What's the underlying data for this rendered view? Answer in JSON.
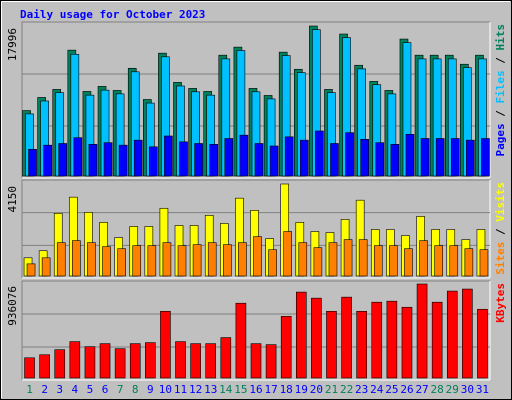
{
  "title": "Daily usage for October 2023",
  "legend_separator": " / ",
  "chart_data": [
    {
      "type": "bar",
      "ylim": [
        0,
        17996
      ],
      "yticks": [
        17996
      ],
      "series": [
        {
          "name": "Hits",
          "color": "#00805c",
          "values": [
            7852,
            9422,
            10389,
            15100,
            10147,
            10751,
            10268,
            12926,
            9181,
            14738,
            11234,
            10510,
            10147,
            14496,
            15462,
            10510,
            9664,
            14858,
            12805,
            17996,
            10389,
            17033,
            13288,
            11355,
            10268,
            16429,
            14496,
            14496,
            14496,
            13409,
            14496
          ]
        },
        {
          "name": "Files",
          "color": "#00c0ff",
          "values": [
            7450,
            9000,
            10000,
            14600,
            9700,
            10300,
            9850,
            12500,
            8750,
            14300,
            10800,
            10100,
            9700,
            14050,
            15050,
            10100,
            9250,
            14450,
            12400,
            17550,
            10000,
            16600,
            12850,
            10950,
            9850,
            16000,
            14050,
            14050,
            14050,
            13000,
            14050
          ]
        },
        {
          "name": "Pages",
          "color": "#0000ff",
          "values": [
            3200,
            3700,
            3900,
            4600,
            3800,
            4000,
            3700,
            4300,
            3500,
            4800,
            4100,
            3900,
            3800,
            4500,
            4900,
            3900,
            3600,
            4700,
            4300,
            5400,
            3900,
            5200,
            4400,
            4000,
            3800,
            5000,
            4500,
            4500,
            4500,
            4300,
            4500
          ]
        }
      ]
    },
    {
      "type": "bar",
      "ylim": [
        0,
        4150
      ],
      "yticks": [
        4150
      ],
      "series": [
        {
          "name": "Visits",
          "color": "#ffff00",
          "values": [
            821,
            1140,
            2827,
            3557,
            2873,
            2417,
            1733,
            2234,
            2234,
            3055,
            2280,
            2280,
            2736,
            2371,
            3511,
            2964,
            1687,
            4150,
            2417,
            2006,
            1961,
            2554,
            3420,
            2098,
            2098,
            1824,
            2690,
            2098,
            2098,
            1642,
            2098
          ]
        },
        {
          "name": "Sites",
          "color": "#ff8000",
          "values": [
            547,
            821,
            1505,
            1596,
            1505,
            1322,
            1231,
            1368,
            1368,
            1505,
            1368,
            1414,
            1505,
            1414,
            1505,
            1778,
            1186,
            2006,
            1505,
            1277,
            1505,
            1642,
            1642,
            1368,
            1368,
            1231,
            1596,
            1368,
            1368,
            1231,
            1186
          ]
        }
      ]
    },
    {
      "type": "bar",
      "ylim": [
        0,
        936076
      ],
      "yticks": [
        936076
      ],
      "categories": [
        "1",
        "2",
        "3",
        "4",
        "5",
        "6",
        "7",
        "8",
        "9",
        "10",
        "11",
        "12",
        "13",
        "14",
        "15",
        "16",
        "17",
        "18",
        "19",
        "20",
        "21",
        "22",
        "23",
        "24",
        "25",
        "26",
        "27",
        "28",
        "29",
        "30",
        "31"
      ],
      "category_colors": [
        "#00805c",
        "#0000ff",
        "#0000ff",
        "#0000ff",
        "#0000ff",
        "#0000ff",
        "#00805c",
        "#00805c",
        "#0000ff",
        "#0000ff",
        "#0000ff",
        "#0000ff",
        "#0000ff",
        "#00805c",
        "#00805c",
        "#0000ff",
        "#0000ff",
        "#0000ff",
        "#0000ff",
        "#0000ff",
        "#00805c",
        "#00805c",
        "#0000ff",
        "#0000ff",
        "#0000ff",
        "#0000ff",
        "#0000ff",
        "#00805c",
        "#00805c",
        "#0000ff",
        "#0000ff"
      ],
      "series": [
        {
          "name": "KBytes",
          "color": "#ff0000",
          "values": [
            201300,
            231495,
            281820,
            362340,
            312015,
            342210,
            291885,
            342210,
            352275,
            664290,
            362340,
            342210,
            342210,
            402600,
            744810,
            342210,
            332145,
            613965,
            855525,
            795135,
            664290,
            805200,
            664290,
            754875,
            764940,
            704550,
            936076,
            754875,
            865590,
            885720,
            684420
          ]
        }
      ]
    }
  ]
}
